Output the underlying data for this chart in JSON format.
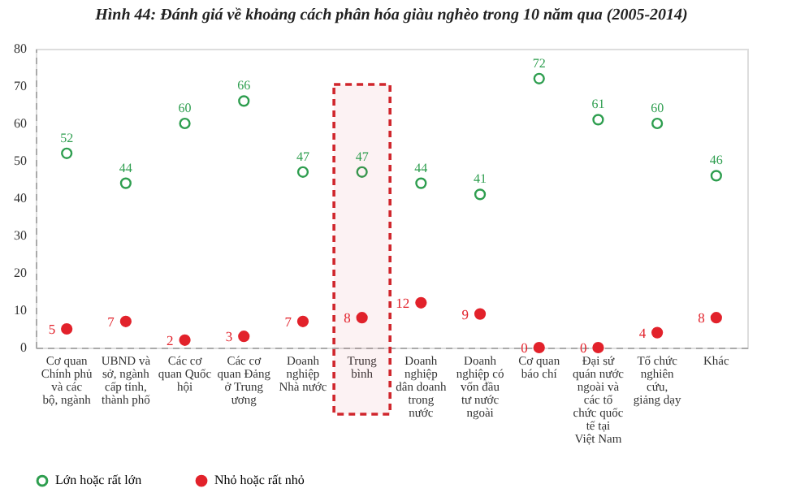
{
  "chart_data": {
    "type": "scatter",
    "title": "Hình 44: Đánh giá về khoảng cách phân hóa giàu nghèo trong 10 năm qua (2005-2014)",
    "categories": [
      "Cơ quan Chính phủ và các bộ, ngành",
      "UBND và sở, ngành cấp tỉnh, thành phố",
      "Các cơ quan Quốc hội",
      "Các cơ quan Đảng ở Trung ương",
      "Doanh nghiệp Nhà nước",
      "Trung bình",
      "Doanh nghiệp dân doanh trong nước",
      "Doanh nghiệp có vốn đầu tư nước ngoài",
      "Cơ quan báo chí",
      "Đại sứ quán nước ngoài và các tổ chức quốc tế tại Việt Nam",
      "Tổ chức nghiên cứu, giảng dạy",
      "Khác"
    ],
    "series": [
      {
        "name": "Lớn hoặc rất lớn",
        "color": "#2e9e4f",
        "values": [
          52,
          44,
          60,
          66,
          47,
          47,
          44,
          41,
          72,
          61,
          60,
          46
        ]
      },
      {
        "name": "Nhỏ hoặc rất nhỏ",
        "color": "#e2222b",
        "values": [
          5,
          7,
          2,
          3,
          7,
          8,
          12,
          9,
          0,
          0,
          4,
          8
        ]
      }
    ],
    "ylim": [
      0,
      80
    ],
    "yticks": [
      0,
      10,
      20,
      30,
      40,
      50,
      60,
      70,
      80
    ],
    "bands": [
      {
        "axis": "x",
        "from": "Trung bình",
        "to": "Trung bình",
        "color": "#d0262c"
      }
    ],
    "grid": false,
    "data_labels": true,
    "marker": "circle",
    "legend": "bottom"
  }
}
